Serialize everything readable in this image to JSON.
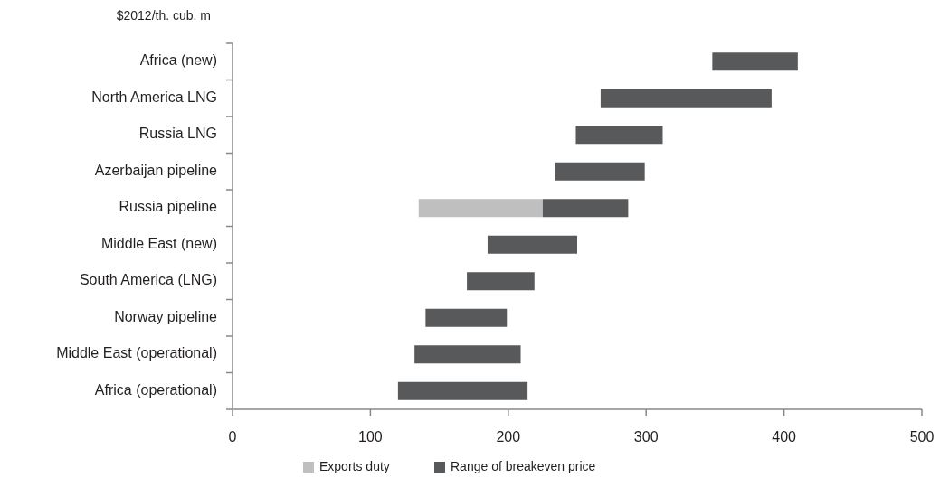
{
  "chart_data": {
    "type": "bar",
    "orientation": "horizontal",
    "xlabel": "$2012/th. cub. m",
    "categories": [
      "Africa (new)",
      "North America LNG",
      "Russia LNG",
      "Azerbaijan pipeline",
      "Russia pipeline",
      "Middle East (new)",
      "South America (LNG)",
      "Norway pipeline",
      "Middle East (operational)",
      "Africa (operational)"
    ],
    "series": [
      {
        "name": "Exports duty",
        "color": "#bfbfbf",
        "base": [
          null,
          null,
          null,
          null,
          135,
          null,
          null,
          null,
          null,
          null
        ],
        "values": [
          null,
          null,
          null,
          null,
          90,
          null,
          null,
          null,
          null,
          null
        ]
      },
      {
        "name": "Range of breakeven price",
        "color": "#58595b",
        "base": [
          348,
          267,
          249,
          234,
          225,
          185,
          170,
          140,
          132,
          120
        ],
        "values": [
          62,
          124,
          63,
          65,
          62,
          65,
          49,
          59,
          77,
          94
        ]
      }
    ],
    "xlim": [
      0,
      500
    ],
    "xticks": [
      0,
      100,
      200,
      300,
      400,
      500
    ],
    "grid": false,
    "legend": "bottom"
  }
}
